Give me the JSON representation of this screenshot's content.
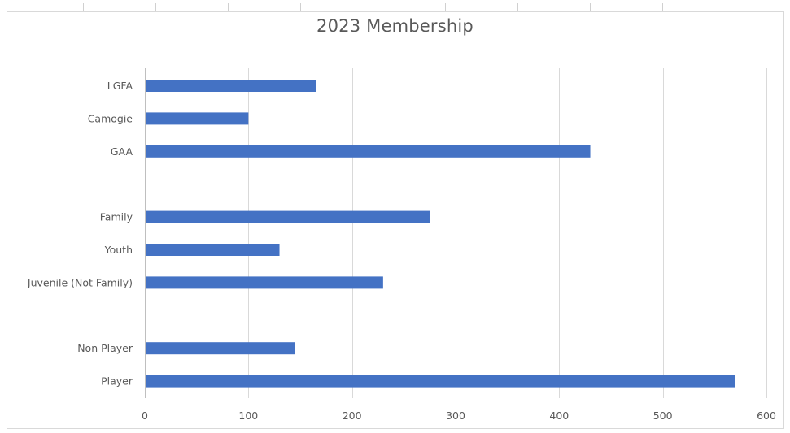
{
  "chart_data": {
    "type": "bar",
    "orientation": "horizontal",
    "title": "2023 Membership",
    "xlabel": "",
    "ylabel": "",
    "xlim": [
      0,
      600
    ],
    "xticks": [
      0,
      100,
      200,
      300,
      400,
      500,
      600
    ],
    "grid": true,
    "legend": "none",
    "bar_color": "#4472C4",
    "categories": [
      "LGFA",
      "Camogie",
      "GAA",
      "",
      "Family",
      "Youth",
      "Juvenile (Not Family)",
      "",
      "Non Player",
      "Player"
    ],
    "values": [
      165,
      100,
      430,
      null,
      275,
      130,
      230,
      null,
      145,
      570
    ]
  }
}
